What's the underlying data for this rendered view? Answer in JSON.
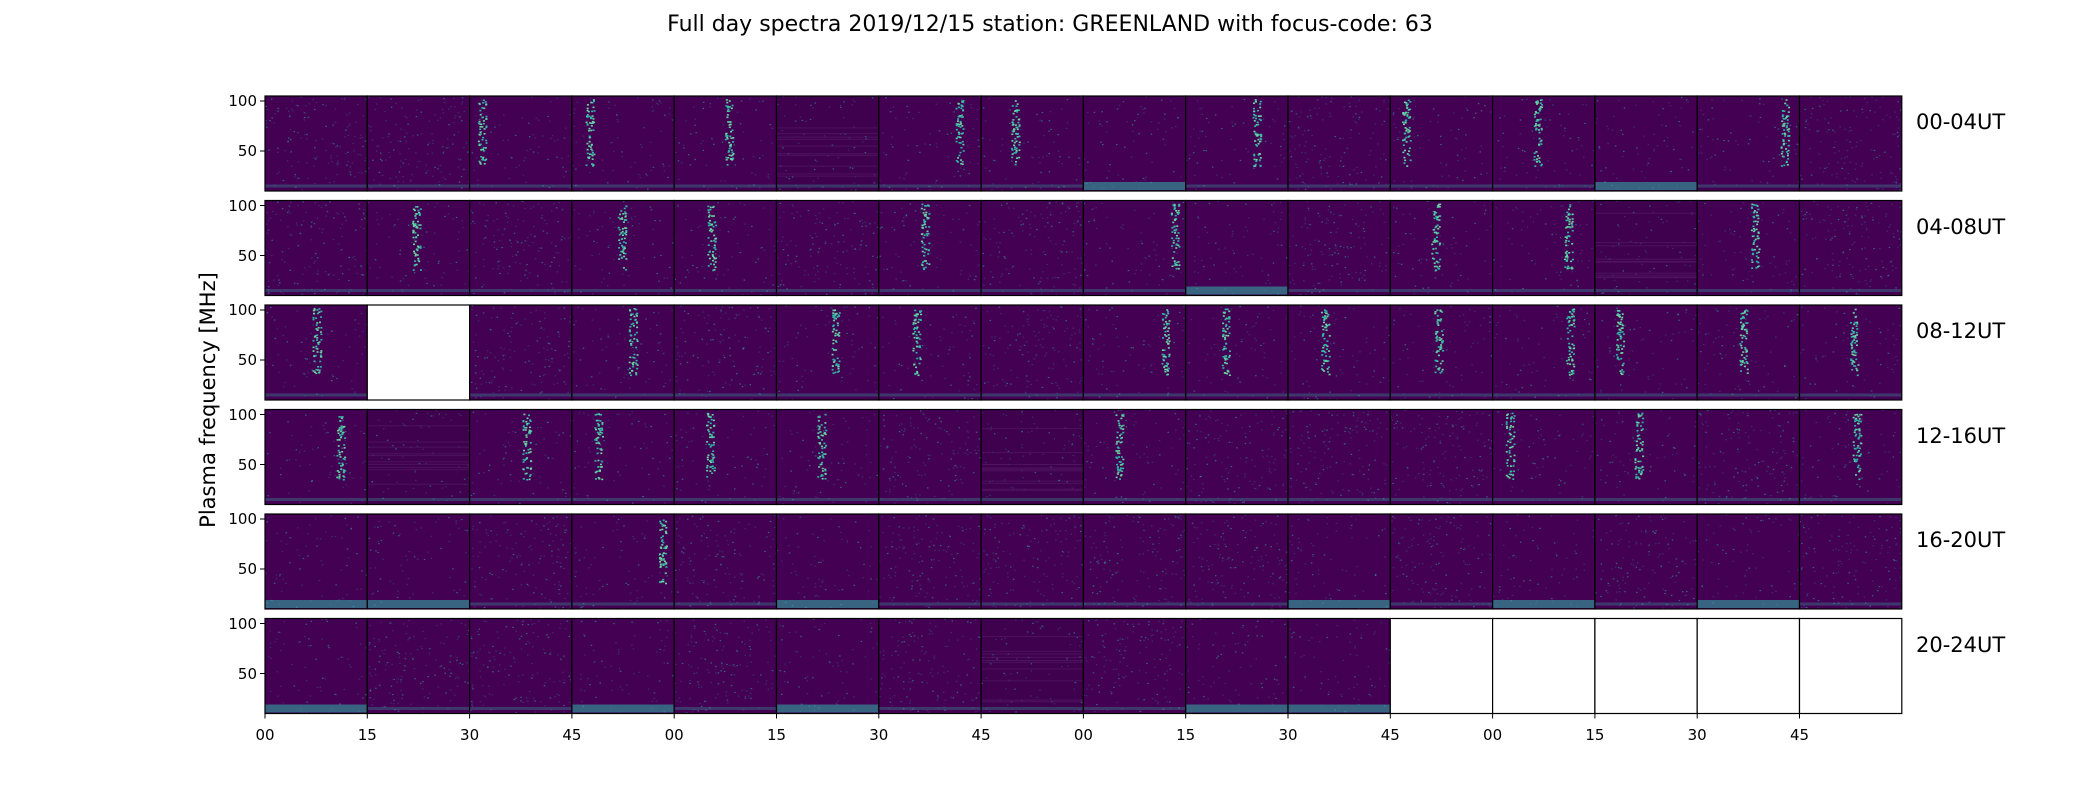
{
  "title": "Full day spectra 2019/12/15 station: GREENLAND with focus-code: 63",
  "ylabel": "Plasma frequency [MHz]",
  "chart_data": {
    "type": "heatmap",
    "title": "Full day spectra 2019/12/15 station: GREENLAND with focus-code: 63",
    "ylabel": "Plasma frequency [MHz]",
    "y_ticks": [
      "50",
      "100"
    ],
    "ylim": [
      10,
      105
    ],
    "x_ticks": [
      "00",
      "15",
      "30",
      "45",
      "00",
      "15",
      "30",
      "45",
      "00",
      "15",
      "30",
      "45",
      "00",
      "15",
      "30",
      "45"
    ],
    "colormap": "viridis",
    "colors": {
      "background": "#440154",
      "bright": "#2fb5a5",
      "mid": "#3b528b",
      "highlight": "#6ad3a0"
    },
    "rows": [
      {
        "label": "00-04UT",
        "panels": [
          "noise",
          "noise",
          "burst",
          "burst",
          "burst",
          "dark",
          "burst",
          "burst",
          "bottom",
          "burst",
          "noise",
          "burst",
          "burst",
          "bottom",
          "burst",
          "noise"
        ]
      },
      {
        "label": "04-08UT",
        "panels": [
          "noise",
          "burst",
          "noise",
          "burst",
          "burst",
          "noise",
          "burst",
          "noise",
          "burst",
          "bottom",
          "noise",
          "burst",
          "burst",
          "dark",
          "burst",
          "noise"
        ]
      },
      {
        "label": "08-12UT",
        "panels": [
          "burst",
          "empty",
          "noise",
          "burst",
          "noise",
          "burst",
          "burst",
          "noise",
          "burst",
          "burst",
          "burst",
          "burst",
          "burst",
          "burst",
          "burst",
          "burst"
        ]
      },
      {
        "label": "12-16UT",
        "panels": [
          "burst",
          "dark",
          "burst",
          "burst",
          "burst",
          "burst",
          "noise",
          "dark",
          "burst",
          "noise",
          "noise",
          "noise",
          "burst",
          "burst",
          "noise",
          "burst"
        ]
      },
      {
        "label": "16-20UT",
        "panels": [
          "bottom",
          "bottom",
          "noise",
          "burst",
          "noise",
          "bottom",
          "noise",
          "noise",
          "noise",
          "noise",
          "bottom",
          "noise",
          "bottom",
          "noise",
          "bottom",
          "noise"
        ]
      },
      {
        "label": "20-24UT",
        "panels": [
          "bottom",
          "noise",
          "noise",
          "bottom",
          "noise",
          "bottom",
          "noise",
          "dark",
          "noise",
          "bottom",
          "bottom",
          "empty",
          "empty",
          "empty",
          "empty",
          "empty"
        ]
      }
    ]
  }
}
